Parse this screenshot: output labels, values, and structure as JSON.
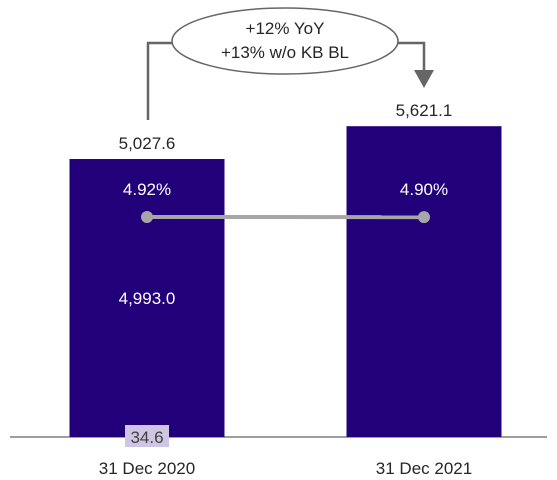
{
  "chart_data": {
    "type": "bar",
    "categories": [
      "31 Dec 2020",
      "31 Dec 2021"
    ],
    "totals": [
      5027.6,
      5621.1
    ],
    "total_labels": [
      "5,027.6",
      "5,621.1"
    ],
    "series": [
      {
        "values": [
          4993.0,
          null
        ],
        "labels": [
          "4,993.0",
          ""
        ],
        "color": "#22007a"
      },
      {
        "values": [
          34.6,
          null
        ],
        "labels": [
          "34.6",
          ""
        ],
        "color": "#cfc6e3"
      }
    ],
    "line_series": {
      "values": [
        4.92,
        4.9
      ],
      "labels": [
        "4.92%",
        "4.90%"
      ],
      "color": "#a6a6a6"
    },
    "callout": {
      "line1": "+12% YoY",
      "line2": "+13% w/o KB BL"
    },
    "colors": {
      "bar": "#22007a",
      "small_segment": "#cfc6e3",
      "arrow": "#666666",
      "axis": "#7f7f7f"
    }
  }
}
